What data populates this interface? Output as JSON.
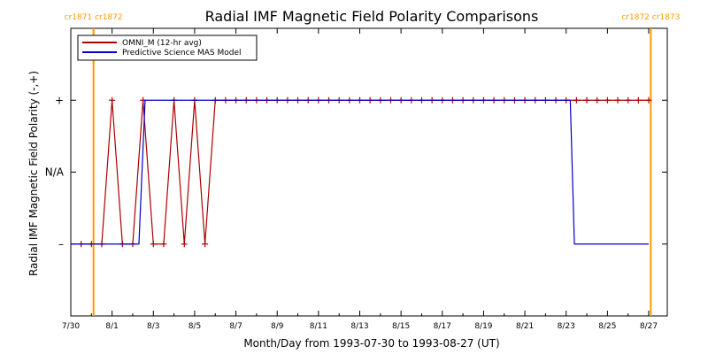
{
  "chart_data": {
    "type": "line",
    "title": "Radial IMF Magnetic Field Polarity Comparisons",
    "xlabel": "Month/Day from 1993-07-30 to 1993-08-27 (UT)",
    "ylabel": "Radial IMF Magnetic Field Polarity (-,+)",
    "xlim_days": [
      0,
      28.9
    ],
    "ylim": [
      -2,
      2
    ],
    "x_ticks": [
      {
        "day": 0,
        "label": "7/30"
      },
      {
        "day": 2,
        "label": "8/1"
      },
      {
        "day": 4,
        "label": "8/3"
      },
      {
        "day": 6,
        "label": "8/5"
      },
      {
        "day": 8,
        "label": "8/7"
      },
      {
        "day": 10,
        "label": "8/9"
      },
      {
        "day": 12,
        "label": "8/11"
      },
      {
        "day": 14,
        "label": "8/13"
      },
      {
        "day": 16,
        "label": "8/15"
      },
      {
        "day": 18,
        "label": "8/17"
      },
      {
        "day": 20,
        "label": "8/19"
      },
      {
        "day": 22,
        "label": "8/21"
      },
      {
        "day": 24,
        "label": "8/23"
      },
      {
        "day": 26,
        "label": "8/25"
      },
      {
        "day": 28,
        "label": "8/27"
      }
    ],
    "y_ticks": [
      {
        "value": 1,
        "label": "+"
      },
      {
        "value": 0,
        "label": "N/A"
      },
      {
        "value": -1,
        "label": "–"
      }
    ],
    "carrington_markers": [
      {
        "day": 1.1,
        "label": "cr1871 cr1872"
      },
      {
        "day": 28.1,
        "label": "cr1872 cr1873"
      }
    ],
    "series": [
      {
        "name": "OMNI_M (12-hr avg)",
        "color": "#aa0000",
        "markers": true,
        "x": [
          0.5,
          1.0,
          1.5,
          2.0,
          2.5,
          3.0,
          3.5,
          4.0,
          4.5,
          5.0,
          5.5,
          6.0,
          6.5,
          7.0,
          7.5,
          8.0,
          8.5,
          9.0,
          9.5,
          10.0,
          10.5,
          11.0,
          11.5,
          12.0,
          12.5,
          13.0,
          13.5,
          14.0,
          14.5,
          15.0,
          15.5,
          16.0,
          16.5,
          17.0,
          17.5,
          18.0,
          18.5,
          19.0,
          19.5,
          20.0,
          20.5,
          21.0,
          21.5,
          22.0,
          22.5,
          23.0,
          23.5,
          24.0,
          24.5,
          25.0,
          25.5,
          26.0,
          26.5,
          27.0,
          27.5,
          28.0
        ],
        "y": [
          -1,
          -1,
          -1,
          1,
          -1,
          -1,
          1,
          -1,
          -1,
          1,
          -1,
          1,
          -1,
          1,
          1,
          1,
          1,
          1,
          1,
          1,
          1,
          1,
          1,
          1,
          1,
          1,
          1,
          1,
          1,
          1,
          1,
          1,
          1,
          1,
          1,
          1,
          1,
          1,
          1,
          1,
          1,
          1,
          1,
          1,
          1,
          1,
          1,
          1,
          1,
          1,
          1,
          1,
          1,
          1,
          1,
          1
        ]
      },
      {
        "name": "Predictive Science MAS Model",
        "color": "#0000cc",
        "markers": false,
        "x": [
          0.0,
          3.3,
          3.6,
          24.2,
          24.4,
          28.0
        ],
        "y": [
          -1,
          -1,
          1,
          1,
          -1,
          -1
        ]
      }
    ],
    "legend": "top-left",
    "grid": false
  }
}
